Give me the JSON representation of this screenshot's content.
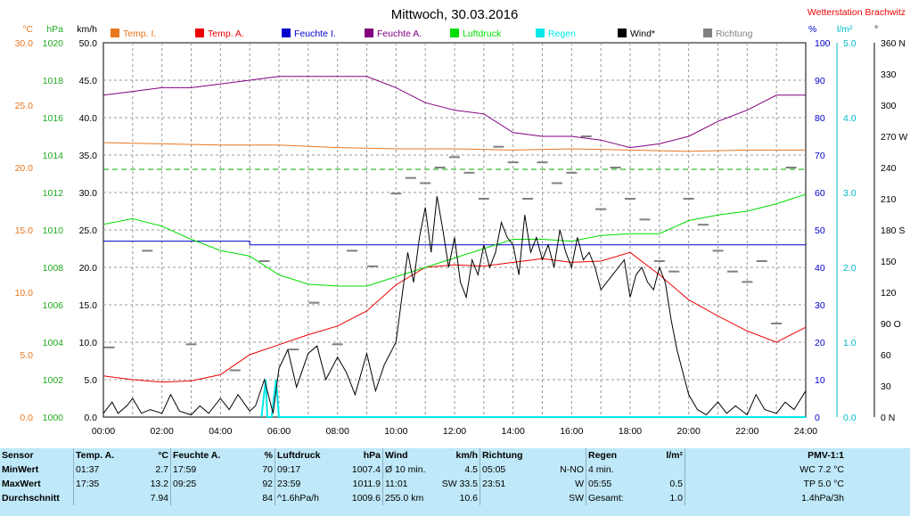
{
  "chart_data": {
    "type": "line",
    "title": "Mittwoch, 30.03.2016",
    "station": "Wetterstation Brachwitz",
    "x_axis": {
      "ticks": [
        "00:00",
        "02:00",
        "04:00",
        "06:00",
        "08:00",
        "10:00",
        "12:00",
        "14:00",
        "16:00",
        "18:00",
        "20:00",
        "22:00",
        "24:00"
      ],
      "range_hours": [
        0,
        24
      ]
    },
    "left_axes": [
      {
        "unit": "°C",
        "color": "#e8761e",
        "range": [
          0,
          30
        ],
        "ticks": [
          "0.0",
          "5.0",
          "10.0",
          "15.0",
          "20.0",
          "25.0",
          "30.0"
        ]
      },
      {
        "unit": "hPa",
        "color": "#22a822",
        "range": [
          1000,
          1020
        ],
        "ticks": [
          "1000",
          "1002",
          "1004",
          "1006",
          "1008",
          "1010",
          "1012",
          "1014",
          "1016",
          "1018",
          "1020"
        ]
      },
      {
        "unit": "km/h",
        "color": "#000000",
        "range": [
          0,
          50
        ],
        "ticks": [
          "0.0",
          "5.0",
          "10.0",
          "15.0",
          "20.0",
          "25.0",
          "30.0",
          "35.0",
          "40.0",
          "45.0",
          "50.0"
        ]
      }
    ],
    "right_axes": [
      {
        "unit": "%",
        "color": "#0000cc",
        "range": [
          0,
          100
        ],
        "ticks": [
          "0",
          "10",
          "20",
          "30",
          "40",
          "50",
          "60",
          "70",
          "80",
          "90",
          "100"
        ]
      },
      {
        "unit": "l/m²",
        "color": "#00b8c8",
        "range": [
          0,
          5
        ],
        "ticks": [
          "0.0",
          "1.0",
          "2.0",
          "3.0",
          "4.0",
          "5.0"
        ]
      },
      {
        "unit": "°",
        "color": "#000000",
        "range": [
          0,
          360
        ],
        "ticks": [
          "0 N",
          "30",
          "60",
          "90 O",
          "120",
          "150",
          "180 S",
          "210",
          "240",
          "270 W",
          "300",
          "330",
          "360 N"
        ]
      }
    ],
    "legend": [
      {
        "label": "Temp. I.",
        "color": "#e8761e"
      },
      {
        "label": "Temp. A.",
        "color": "#ee0000"
      },
      {
        "label": "Feuchte I.",
        "color": "#0000cc"
      },
      {
        "label": "Feuchte A.",
        "color": "#800080"
      },
      {
        "label": "Luftdruck",
        "color": "#00dd00"
      },
      {
        "label": "Regen",
        "color": "#00e8e8"
      },
      {
        "label": "Wind*",
        "color": "#000000"
      },
      {
        "label": "Richtung",
        "color": "#808080"
      }
    ],
    "legend_placement": "top",
    "grid": true,
    "series": [
      {
        "name": "Temp. I.",
        "axis": "°C",
        "x": [
          0,
          2,
          4,
          6,
          8,
          10,
          12,
          14,
          16,
          18,
          20,
          22,
          24
        ],
        "y": [
          22.0,
          21.9,
          21.8,
          21.8,
          21.6,
          21.5,
          21.5,
          21.4,
          21.5,
          21.4,
          21.3,
          21.4,
          21.4
        ]
      },
      {
        "name": "Temp. A.",
        "axis": "°C",
        "x": [
          0,
          1,
          2,
          3,
          4,
          5,
          6,
          7,
          8,
          9,
          10,
          11,
          12,
          13,
          14,
          15,
          16,
          17,
          18,
          19,
          20,
          21,
          22,
          23,
          24
        ],
        "y": [
          3.3,
          3.0,
          2.8,
          2.9,
          3.4,
          5.0,
          5.8,
          6.6,
          7.3,
          8.5,
          10.6,
          12.0,
          12.2,
          12.1,
          12.4,
          12.7,
          12.4,
          12.5,
          13.2,
          11.4,
          9.4,
          8.1,
          6.9,
          6.0,
          7.2
        ]
      },
      {
        "name": "Feuchte I.",
        "axis": "%",
        "x": [
          0,
          4.9,
          5,
          24
        ],
        "y": [
          47,
          47,
          46,
          46
        ]
      },
      {
        "name": "Feuchte A.",
        "axis": "%",
        "x": [
          0,
          1,
          2,
          3,
          4,
          5,
          6,
          7,
          8,
          9,
          10,
          11,
          12,
          13,
          14,
          15,
          16,
          17,
          18,
          19,
          20,
          21,
          22,
          23,
          24
        ],
        "y": [
          86,
          87,
          88,
          88,
          89,
          90,
          91,
          91,
          91,
          91,
          88,
          84,
          82,
          81,
          76,
          75,
          75,
          74,
          72,
          73,
          75,
          79,
          82,
          86,
          86
        ]
      },
      {
        "name": "Luftdruck",
        "axis": "hPa",
        "x": [
          0,
          1,
          2,
          3,
          4,
          5,
          6,
          7,
          8,
          9,
          10,
          11,
          12,
          13,
          14,
          15,
          16,
          17,
          18,
          19,
          20,
          21,
          22,
          23,
          24
        ],
        "y": [
          1010.3,
          1010.6,
          1010.2,
          1009.5,
          1008.9,
          1008.6,
          1007.6,
          1007.1,
          1007.0,
          1007.0,
          1007.5,
          1008.0,
          1008.5,
          1009.0,
          1009.5,
          1009.5,
          1009.4,
          1009.7,
          1009.8,
          1009.8,
          1010.5,
          1010.8,
          1011.0,
          1011.4,
          1011.9
        ]
      },
      {
        "name": "Regen",
        "axis": "l/m²",
        "x": [
          5.4,
          5.55,
          5.6,
          5.75,
          5.9,
          6.0,
          24
        ],
        "y": [
          0,
          0.5,
          0,
          0,
          0.5,
          0,
          0
        ]
      },
      {
        "name": "Wind*",
        "axis": "km/h",
        "x": [
          0,
          0.3,
          0.5,
          0.8,
          1,
          1.3,
          1.6,
          2,
          2.3,
          2.6,
          3,
          3.3,
          3.6,
          4,
          4.3,
          4.6,
          5,
          5.2,
          5.5,
          5.8,
          6,
          6.3,
          6.6,
          7,
          7.3,
          7.6,
          8,
          8.3,
          8.6,
          9,
          9.3,
          9.6,
          10,
          10.2,
          10.4,
          10.6,
          10.8,
          11,
          11.2,
          11.4,
          11.6,
          11.8,
          12,
          12.2,
          12.4,
          12.6,
          12.8,
          13,
          13.2,
          13.4,
          13.6,
          13.8,
          14,
          14.2,
          14.4,
          14.6,
          14.8,
          15,
          15.2,
          15.4,
          15.6,
          15.8,
          16,
          16.2,
          16.4,
          16.6,
          16.8,
          17,
          17.2,
          17.4,
          17.6,
          17.8,
          18,
          18.2,
          18.4,
          18.6,
          18.8,
          19,
          19.2,
          19.4,
          19.6,
          19.8,
          20,
          20.3,
          20.6,
          21,
          21.3,
          21.6,
          22,
          22.3,
          22.6,
          23,
          23.3,
          23.6,
          24
        ],
        "y": [
          0.5,
          2.0,
          0.5,
          1.5,
          2.5,
          0.5,
          1.0,
          0.5,
          3.0,
          0.8,
          0.3,
          1.5,
          0.5,
          2.5,
          1.0,
          3.0,
          0.8,
          1.5,
          5.0,
          0.5,
          6.5,
          9.0,
          4.0,
          8.5,
          9.5,
          5.0,
          8.0,
          6.0,
          3.0,
          8.5,
          3.5,
          7.0,
          10.0,
          16.0,
          22.0,
          18.0,
          24.0,
          28.0,
          22.0,
          29.5,
          25.0,
          20.0,
          24.0,
          18.0,
          16.0,
          21.0,
          19.0,
          23.0,
          20.0,
          22.0,
          26.0,
          24.0,
          23.0,
          19.0,
          27.0,
          22.0,
          24.0,
          21.0,
          23.0,
          20.0,
          25.0,
          22.0,
          20.0,
          24.0,
          21.0,
          22.0,
          20.0,
          17.0,
          18.0,
          19.0,
          20.0,
          21.0,
          16.0,
          19.0,
          20.0,
          18.0,
          17.0,
          20.0,
          18.0,
          13.0,
          9.0,
          6.0,
          3.0,
          1.0,
          0.3,
          2.0,
          0.5,
          1.5,
          0.3,
          3.0,
          1.0,
          0.5,
          2.0,
          1.0,
          3.5
        ]
      },
      {
        "name": "Richtung",
        "axis": "°",
        "x": [
          0.2,
          1.5,
          3,
          4.5,
          5.5,
          6.5,
          7.2,
          8,
          8.5,
          9.2,
          10,
          10.5,
          11,
          11.5,
          12,
          12.5,
          13,
          13.5,
          14,
          14.5,
          15,
          15.5,
          16,
          16.5,
          17,
          17.5,
          18,
          18.5,
          19,
          19.5,
          20,
          20.5,
          21,
          21.5,
          22,
          22.5,
          23,
          23.5
        ],
        "y": [
          67,
          160,
          70,
          45,
          150,
          65,
          110,
          70,
          160,
          145,
          215,
          230,
          225,
          240,
          250,
          235,
          210,
          260,
          245,
          210,
          245,
          225,
          235,
          270,
          200,
          240,
          210,
          190,
          150,
          140,
          210,
          185,
          160,
          140,
          130,
          150,
          90,
          240
        ]
      }
    ]
  },
  "stats": {
    "headers": {
      "sensor": "Sensor",
      "temp": "Temp. A.",
      "temp_unit": "°C",
      "hum": "Feuchte A.",
      "hum_unit": "%",
      "press": "Luftdruck",
      "press_unit": "hPa",
      "wind": "Wind",
      "wind_unit": "km/h",
      "dir": "Richtung",
      "rain": "Regen",
      "rain_unit": "l/m²",
      "pmv": "PMV-1:1"
    },
    "rows": [
      {
        "label": "MinWert",
        "temp_time": "01:37",
        "temp": "2.7",
        "hum_time": "17:59",
        "hum": "70",
        "press_time": "09:17",
        "press": "1007.4",
        "wind_label": "Ø 10 min.",
        "wind": "4.5",
        "dir_time": "05:05",
        "dir": "N-NO",
        "rain_label": "4 min.",
        "rain": "",
        "pmv": "WC 7.2 °C"
      },
      {
        "label": "MaxWert",
        "temp_time": "17:35",
        "temp": "13.2",
        "hum_time": "09:25",
        "hum": "92",
        "press_time": "23:59",
        "press": "1011.9",
        "wind_label": "11:01",
        "wind": "SW 33.5",
        "dir_time": "23:51",
        "dir": "W",
        "rain_label": "05:55",
        "rain": "0.5",
        "pmv": "TP 5.0 °C"
      },
      {
        "label": "Durchschnitt",
        "temp_time": "",
        "temp": "7.94",
        "hum_time": "",
        "hum": "84",
        "press_time": "^1.6hPa/h",
        "press": "1009.6",
        "wind_label": "255.0 km",
        "wind": "10.6",
        "dir_time": "",
        "dir": "SW",
        "rain_label": "Gesamt:",
        "rain": "1.0",
        "pmv": "1.4hPa/3h"
      }
    ]
  }
}
